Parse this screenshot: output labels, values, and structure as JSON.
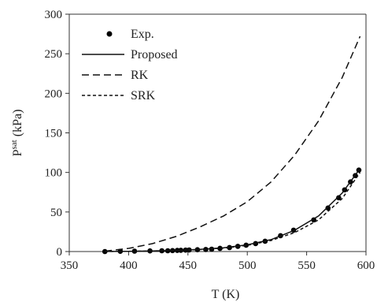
{
  "chart_data": {
    "type": "scatter",
    "xlabel": "T (K)",
    "ylabel_base": "P",
    "ylabel_sup": "sat",
    "ylabel_unit": " (kPa)",
    "xlim": [
      350,
      600
    ],
    "ylim": [
      0,
      300
    ],
    "x_ticks": [
      350,
      400,
      450,
      500,
      550,
      600
    ],
    "y_ticks": [
      0,
      50,
      100,
      150,
      200,
      250,
      300
    ],
    "grid": false,
    "legend_position": "top-left",
    "series": [
      {
        "name": "Exp.",
        "kind": "markers",
        "x": [
          380,
          393,
          405,
          418,
          428,
          433,
          437,
          441,
          444,
          448,
          451,
          458,
          465,
          470,
          477,
          485,
          492,
          499,
          507,
          515,
          528,
          539,
          556,
          568,
          577,
          582,
          587,
          591,
          594
        ],
        "y": [
          0,
          0.3,
          0.5,
          0.8,
          1,
          1,
          1.2,
          1.4,
          1.6,
          1.8,
          2,
          2.3,
          2.6,
          3,
          4,
          5,
          6.5,
          8,
          10,
          13,
          20,
          27,
          40,
          55,
          68,
          78,
          88,
          96,
          103
        ]
      },
      {
        "name": "Proposed",
        "kind": "line",
        "dash": "solid",
        "x": [
          380,
          400,
          420,
          440,
          460,
          480,
          500,
          520,
          540,
          560,
          580,
          595
        ],
        "y": [
          0.1,
          0.3,
          0.7,
          1.5,
          2.7,
          4.8,
          8.5,
          15,
          27,
          45,
          74,
          105
        ]
      },
      {
        "name": "RK",
        "kind": "line",
        "dash": "long",
        "x": [
          380,
          400,
          420,
          440,
          460,
          480,
          500,
          520,
          540,
          560,
          580,
          595
        ],
        "y": [
          0.5,
          4,
          10,
          19,
          31,
          45,
          63,
          88,
          122,
          165,
          220,
          272
        ]
      },
      {
        "name": "SRK",
        "kind": "line",
        "dash": "short",
        "x": [
          380,
          400,
          420,
          440,
          460,
          480,
          500,
          520,
          540,
          560,
          580,
          595
        ],
        "y": [
          0.1,
          0.3,
          0.7,
          1.4,
          2.5,
          4.4,
          7.8,
          14,
          24,
          40,
          67,
          100
        ]
      }
    ]
  }
}
